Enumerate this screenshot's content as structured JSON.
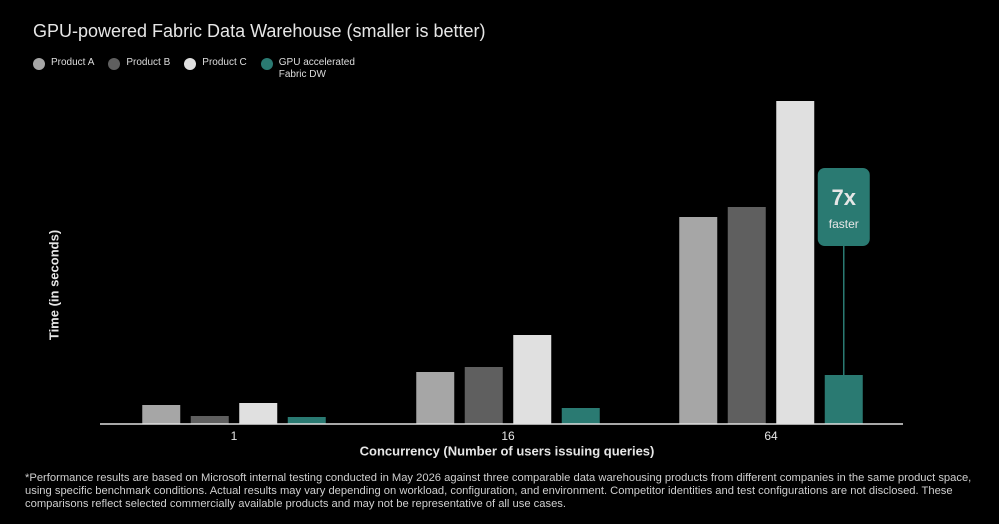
{
  "chart_data": {
    "type": "bar",
    "title": "GPU-powered Fabric Data Warehouse (smaller is better)",
    "x_label": "Concurrency (Number of users issuing queries)",
    "y_label": "Time (in seconds)",
    "categories": [
      "1",
      "16",
      "64"
    ],
    "series": [
      {
        "name": "Product A",
        "color": "#a6a6a6",
        "values": [
          19,
          52,
          207
        ]
      },
      {
        "name": "Product B",
        "color": "#5f5f5f",
        "values": [
          8,
          57,
          217
        ]
      },
      {
        "name": "Product C",
        "color": "#e0e0e0",
        "values": [
          21,
          89,
          323
        ]
      },
      {
        "name": "GPU accelerated Fabric DW",
        "color": "#2a7a72",
        "values": [
          7,
          16,
          49
        ]
      }
    ],
    "ylim": [
      0,
      330
    ],
    "annotation": {
      "text": "7x",
      "subtext": "faster"
    },
    "footnote": "*Performance results are based on Microsoft internal testing conducted in May 2026 against three comparable data warehousing products from different companies in the same product space, using specific benchmark conditions. Actual results may vary depending on workload, configuration, and environment. Competitor identities and test configurations are not disclosed. These comparisons reflect selected commercially available products and may not be representative of all use cases."
  }
}
